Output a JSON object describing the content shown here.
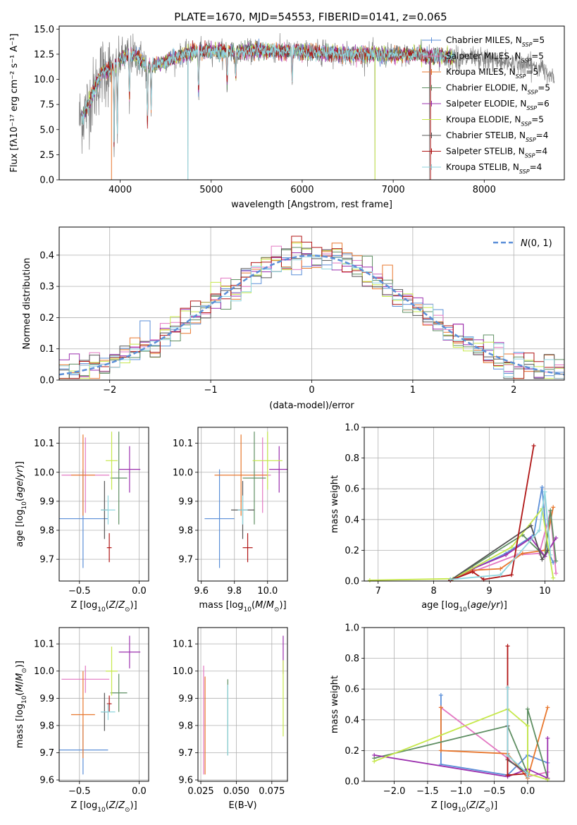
{
  "figure": {
    "title": "PLATE=1670, MJD=54553, FIBERID=0141, z=0.065"
  },
  "colors": {
    "chabrier_miles": "#5b8fd8",
    "salpeter_miles": "#e377c2",
    "kroupa_miles": "#e8772e",
    "chabrier_elodie": "#5f8f63",
    "salpeter_elodie": "#9b2fae",
    "kroupa_elodie": "#c6e84a",
    "chabrier_stelib": "#555555",
    "salpeter_stelib": "#b01515",
    "kroupa_stelib": "#8fd6df",
    "data_gray": "#808080",
    "gaussian": "#5b8fd8"
  },
  "chart_data": [
    {
      "id": "spectrum",
      "type": "line",
      "title": "PLATE=1670, MJD=54553, FIBERID=0141, z=0.065",
      "xlabel": "wavelength [Angstrom, rest frame]",
      "ylabel": "Flux [fλ10⁻¹⁷ erg cm⁻² s⁻¹ A⁻¹]",
      "xlim": [
        3330,
        8880
      ],
      "ylim": [
        0,
        15.3
      ],
      "xticks": [
        4000,
        5000,
        6000,
        7000,
        8000
      ],
      "yticks": [
        0.0,
        2.5,
        5.0,
        7.5,
        10.0,
        12.5,
        15.0
      ],
      "grid": false,
      "legend_position": "top-right",
      "legend": [
        {
          "label": "Chabrier MILES, N",
          "sub": "SSP",
          "suffix": "=5",
          "color_key": "chabrier_miles"
        },
        {
          "label": "Salpeter MILES, N",
          "sub": "SSP",
          "suffix": "=5",
          "color_key": "salpeter_miles"
        },
        {
          "label": "Kroupa MILES, N",
          "sub": "SSP",
          "suffix": "=5",
          "color_key": "kroupa_miles"
        },
        {
          "label": "Chabrier ELODIE, N",
          "sub": "SSP",
          "suffix": "=5",
          "color_key": "chabrier_elodie"
        },
        {
          "label": "Salpeter ELODIE, N",
          "sub": "SSP",
          "suffix": "=6",
          "color_key": "salpeter_elodie"
        },
        {
          "label": "Kroupa ELODIE, N",
          "sub": "SSP",
          "suffix": "=5",
          "color_key": "kroupa_elodie"
        },
        {
          "label": "Chabrier STELIB, N",
          "sub": "SSP",
          "suffix": "=4",
          "color_key": "chabrier_stelib"
        },
        {
          "label": "Salpeter STELIB, N",
          "sub": "SSP",
          "suffix": "=4",
          "color_key": "salpeter_stelib"
        },
        {
          "label": "Kroupa STELIB, N",
          "sub": "SSP",
          "suffix": "=4",
          "color_key": "kroupa_stelib"
        }
      ],
      "continuum": {
        "x": [
          3550,
          3600,
          3700,
          3800,
          3900,
          4000,
          4100,
          4200,
          4300,
          4500,
          4700,
          4900,
          5100,
          5300,
          5500,
          5700,
          5900,
          6100,
          6300,
          6500,
          6700,
          6900,
          7100,
          7300,
          7400,
          7500,
          7600,
          7800,
          8000,
          8200,
          8400,
          8600,
          8800
        ],
        "y": [
          6.0,
          6.5,
          8.5,
          10.8,
          11.0,
          12.0,
          12.5,
          12.2,
          11.2,
          11.8,
          12.5,
          12.8,
          12.8,
          12.7,
          12.9,
          12.8,
          12.8,
          12.7,
          12.6,
          12.5,
          12.5,
          12.4,
          12.4,
          12.5,
          12.3,
          12.4,
          12.2,
          12.0,
          12.0,
          11.8,
          11.5,
          11.2,
          10.2
        ]
      },
      "model_extent": [
        3580,
        7680
      ],
      "data_extent": [
        3550,
        8770
      ],
      "absorption_features": [
        {
          "x": 3934,
          "y": 2.0
        },
        {
          "x": 3969,
          "y": 4.0
        },
        {
          "x": 4102,
          "y": 7.0
        },
        {
          "x": 4300,
          "y": 4.8
        },
        {
          "x": 4340,
          "y": 6.5
        },
        {
          "x": 4861,
          "y": 8.0
        },
        {
          "x": 5175,
          "y": 9.0
        },
        {
          "x": 5270,
          "y": 10.0
        },
        {
          "x": 5890,
          "y": 9.5
        }
      ],
      "data_dropouts": [
        {
          "x": 4745,
          "y": 0.0
        },
        {
          "x": 6800,
          "y": 0.0
        },
        {
          "x": 7400,
          "y": 0.0
        }
      ]
    },
    {
      "id": "residuals",
      "type": "histogram",
      "xlabel": "(data-model)/error",
      "ylabel": "Normed distribution",
      "xlim": [
        -2.5,
        2.5
      ],
      "ylim": [
        0,
        0.49
      ],
      "xticks": [
        -2,
        -1,
        0,
        1,
        2
      ],
      "yticks": [
        0.0,
        0.1,
        0.2,
        0.3,
        0.4
      ],
      "grid": true,
      "bin_width": 0.1,
      "bin_start": -2.5,
      "legend_position": "top-right",
      "gaussian": {
        "label": "N(0,1)",
        "mean": 0,
        "sigma": 1,
        "style": "dashed"
      }
    },
    {
      "id": "age_vs_Z",
      "type": "scatter",
      "xlabel": "Z [log10(Z/Z⊙)]",
      "ylabel": "age [log10(age/yr)]",
      "xlim": [
        -0.67,
        0.08
      ],
      "ylim": [
        9.625,
        10.155
      ],
      "xticks": [
        -0.5,
        0.0
      ],
      "xtick_labels": [
        "−0.5",
        "0.0"
      ],
      "yticks": [
        9.7,
        9.8,
        9.9,
        10.0,
        10.1
      ],
      "grid": true,
      "points": [
        {
          "series": "chabrier_miles",
          "x": -0.47,
          "y": 9.84,
          "xerr": 0.21,
          "yerr": 0.17
        },
        {
          "series": "salpeter_miles",
          "x": -0.45,
          "y": 9.99,
          "xerr": 0.2,
          "yerr": 0.13
        },
        {
          "series": "kroupa_miles",
          "x": -0.47,
          "y": 9.99,
          "xerr": 0.1,
          "yerr": 0.14
        },
        {
          "series": "chabrier_elodie",
          "x": -0.17,
          "y": 9.98,
          "xerr": 0.07,
          "yerr": 0.16
        },
        {
          "series": "salpeter_elodie",
          "x": -0.08,
          "y": 10.01,
          "xerr": 0.09,
          "yerr": 0.08
        },
        {
          "series": "kroupa_elodie",
          "x": -0.23,
          "y": 10.04,
          "xerr": 0.05,
          "yerr": 0.1
        },
        {
          "series": "chabrier_stelib",
          "x": -0.29,
          "y": 9.87,
          "xerr": 0.03,
          "yerr": 0.1
        },
        {
          "series": "salpeter_stelib",
          "x": -0.25,
          "y": 9.74,
          "xerr": 0.02,
          "yerr": 0.05
        },
        {
          "series": "kroupa_stelib",
          "x": -0.26,
          "y": 9.87,
          "xerr": 0.06,
          "yerr": 0.05
        }
      ]
    },
    {
      "id": "age_vs_mass",
      "type": "scatter",
      "xlabel": "mass [log10(M/M⊙)]",
      "xlim": [
        9.58,
        10.12
      ],
      "ylim": [
        9.625,
        10.155
      ],
      "xticks": [
        9.6,
        9.8,
        10.0
      ],
      "yticks": [
        9.7,
        9.8,
        9.9,
        10.0,
        10.1
      ],
      "grid": true,
      "points": [
        {
          "series": "chabrier_miles",
          "x": 9.71,
          "y": 9.84,
          "xerr": 0.09,
          "yerr": 0.17
        },
        {
          "series": "salpeter_miles",
          "x": 9.97,
          "y": 9.99,
          "xerr": 0.05,
          "yerr": 0.13
        },
        {
          "series": "kroupa_miles",
          "x": 9.84,
          "y": 9.99,
          "xerr": 0.16,
          "yerr": 0.14
        },
        {
          "series": "chabrier_elodie",
          "x": 9.92,
          "y": 9.98,
          "xerr": 0.07,
          "yerr": 0.16
        },
        {
          "series": "salpeter_elodie",
          "x": 10.07,
          "y": 10.01,
          "xerr": 0.06,
          "yerr": 0.08
        },
        {
          "series": "kroupa_elodie",
          "x": 10.0,
          "y": 10.04,
          "xerr": 0.09,
          "yerr": 0.1
        },
        {
          "series": "chabrier_stelib",
          "x": 9.85,
          "y": 9.87,
          "xerr": 0.07,
          "yerr": 0.1
        },
        {
          "series": "salpeter_stelib",
          "x": 9.88,
          "y": 9.74,
          "xerr": 0.03,
          "yerr": 0.05
        },
        {
          "series": "kroupa_stelib",
          "x": 9.85,
          "y": 9.87,
          "xerr": 0.03,
          "yerr": 0.05
        }
      ]
    },
    {
      "id": "mass_vs_Z",
      "type": "scatter",
      "xlabel": "Z [log10(Z/Z⊙)]",
      "ylabel": "mass [log10(M/M⊙)]",
      "xlim": [
        -0.67,
        0.08
      ],
      "ylim": [
        9.595,
        10.16
      ],
      "xticks": [
        -0.5,
        0.0
      ],
      "xtick_labels": [
        "−0.5",
        "0.0"
      ],
      "yticks": [
        9.6,
        9.7,
        9.8,
        9.9,
        10.0,
        10.1
      ],
      "grid": true,
      "points": [
        {
          "series": "chabrier_miles",
          "x": -0.47,
          "y": 9.71,
          "xerr": 0.21,
          "yerr": 0.09
        },
        {
          "series": "salpeter_miles",
          "x": -0.45,
          "y": 9.97,
          "xerr": 0.2,
          "yerr": 0.05
        },
        {
          "series": "kroupa_miles",
          "x": -0.47,
          "y": 9.84,
          "xerr": 0.1,
          "yerr": 0.16
        },
        {
          "series": "chabrier_elodie",
          "x": -0.17,
          "y": 9.92,
          "xerr": 0.07,
          "yerr": 0.07
        },
        {
          "series": "salpeter_elodie",
          "x": -0.08,
          "y": 10.07,
          "xerr": 0.09,
          "yerr": 0.06
        },
        {
          "series": "kroupa_elodie",
          "x": -0.23,
          "y": 10.0,
          "xerr": 0.05,
          "yerr": 0.09
        },
        {
          "series": "chabrier_stelib",
          "x": -0.29,
          "y": 9.85,
          "xerr": 0.03,
          "yerr": 0.07
        },
        {
          "series": "salpeter_stelib",
          "x": -0.25,
          "y": 9.88,
          "xerr": 0.02,
          "yerr": 0.03
        },
        {
          "series": "kroupa_stelib",
          "x": -0.26,
          "y": 9.85,
          "xerr": 0.06,
          "yerr": 0.03
        }
      ]
    },
    {
      "id": "mass_vs_ebv",
      "type": "scatter",
      "xlabel": "E(B-V)",
      "xlim": [
        0.023,
        0.086
      ],
      "ylim": [
        9.595,
        10.16
      ],
      "xticks": [
        0.025,
        0.05,
        0.075
      ],
      "xtick_labels": [
        "0.025",
        "0.050",
        "0.075"
      ],
      "yticks": [
        9.6,
        9.7,
        9.8,
        9.9,
        10.0,
        10.1
      ],
      "grid": true,
      "points": [
        {
          "series": "salpeter_miles",
          "x": 0.027,
          "y": 9.82,
          "yerr": 0.2
        },
        {
          "series": "kroupa_miles",
          "x": 0.028,
          "y": 9.8,
          "yerr": 0.18
        },
        {
          "series": "chabrier_elodie",
          "x": 0.044,
          "y": 9.83,
          "yerr": 0.14
        },
        {
          "series": "kroupa_stelib",
          "x": 0.044,
          "y": 9.82,
          "yerr": 0.13
        },
        {
          "series": "salpeter_elodie",
          "x": 0.083,
          "y": 10.06,
          "yerr": 0.07
        },
        {
          "series": "kroupa_elodie",
          "x": 0.083,
          "y": 9.9,
          "yerr": 0.14
        }
      ]
    },
    {
      "id": "weight_vs_age",
      "type": "line",
      "xlabel": "age [log10(age/yr)]",
      "ylabel": "mass weight",
      "xlim": [
        6.75,
        10.35
      ],
      "ylim": [
        0,
        1.0
      ],
      "xticks": [
        7,
        8,
        9,
        10
      ],
      "yticks": [
        0.0,
        0.2,
        0.4,
        0.6,
        0.8,
        1.0
      ],
      "grid": true,
      "series": [
        {
          "color_key": "chabrier_miles",
          "x": [
            8.3,
            9.3,
            9.8,
            9.95,
            10.05,
            10.15
          ],
          "y": [
            0.01,
            0.18,
            0.3,
            0.61,
            0.2,
            0.12
          ]
        },
        {
          "color_key": "salpeter_miles",
          "x": [
            8.3,
            9.5,
            9.9,
            10.1,
            10.2
          ],
          "y": [
            0.005,
            0.17,
            0.18,
            0.45,
            0.05
          ]
        },
        {
          "color_key": "kroupa_miles",
          "x": [
            8.3,
            8.7,
            9.2,
            9.6,
            10.0,
            10.15
          ],
          "y": [
            0.005,
            0.07,
            0.08,
            0.18,
            0.2,
            0.48
          ]
        },
        {
          "color_key": "chabrier_elodie",
          "x": [
            8.3,
            9.6,
            10.0,
            10.1,
            10.2
          ],
          "y": [
            0.005,
            0.3,
            0.16,
            0.46,
            0.13
          ]
        },
        {
          "color_key": "salpeter_elodie",
          "x": [
            8.3,
            8.7,
            9.3,
            9.75,
            10.0,
            10.2
          ],
          "y": [
            0.005,
            0.08,
            0.17,
            0.28,
            0.16,
            0.28
          ]
        },
        {
          "color_key": "kroupa_elodie",
          "x": [
            6.85,
            8.35,
            9.4,
            9.95,
            10.15
          ],
          "y": [
            0.005,
            0.015,
            0.22,
            0.47,
            0.02
          ]
        },
        {
          "color_key": "chabrier_stelib",
          "x": [
            8.3,
            9.75,
            9.95,
            10.05
          ],
          "y": [
            0.005,
            0.36,
            0.14,
            0.2
          ]
        },
        {
          "color_key": "salpeter_stelib",
          "x": [
            8.3,
            8.7,
            8.9,
            9.4,
            9.8
          ],
          "y": [
            0.005,
            0.06,
            0.01,
            0.04,
            0.88
          ]
        },
        {
          "color_key": "kroupa_stelib",
          "x": [
            8.3,
            9.2,
            9.9,
            10.0,
            10.1
          ],
          "y": [
            0.01,
            0.04,
            0.33,
            0.58,
            0.17
          ]
        }
      ]
    },
    {
      "id": "weight_vs_Z",
      "type": "line",
      "xlabel": "Z [log10(Z/Z⊙)]",
      "ylabel": "mass weight",
      "xlim": [
        -2.45,
        0.55
      ],
      "ylim": [
        0,
        1.0
      ],
      "xticks": [
        -2.0,
        -1.5,
        -1.0,
        -0.5,
        0.0
      ],
      "xtick_labels": [
        "−2.0",
        "−1.5",
        "−1.0",
        "−0.5",
        "0.0"
      ],
      "yticks": [
        0.0,
        0.2,
        0.4,
        0.6,
        0.8,
        1.0
      ],
      "grid": true,
      "series": [
        {
          "color_key": "chabrier_miles",
          "x": [
            -1.3,
            -1.3,
            -0.3,
            0.0,
            0.3
          ],
          "y": [
            0.56,
            0.11,
            0.04,
            0.17,
            0.12
          ]
        },
        {
          "color_key": "salpeter_miles",
          "x": [
            -1.3,
            -0.3,
            0.0,
            0.3
          ],
          "y": [
            0.48,
            0.15,
            0.03,
            0.06
          ]
        },
        {
          "color_key": "kroupa_miles",
          "x": [
            -1.3,
            -1.3,
            -0.3,
            0.0,
            0.3
          ],
          "y": [
            0.48,
            0.2,
            0.18,
            0.02,
            0.48
          ]
        },
        {
          "color_key": "chabrier_elodie",
          "x": [
            -2.3,
            -0.3,
            0.0,
            0.0,
            0.3
          ],
          "y": [
            0.15,
            0.36,
            0.05,
            0.47,
            0.02
          ]
        },
        {
          "color_key": "salpeter_elodie",
          "x": [
            -2.3,
            -0.3,
            0.0,
            0.3,
            0.3
          ],
          "y": [
            0.17,
            0.03,
            0.08,
            0.02,
            0.28
          ]
        },
        {
          "color_key": "kroupa_elodie",
          "x": [
            -2.3,
            -0.3,
            0.0,
            0.0,
            0.3
          ],
          "y": [
            0.13,
            0.47,
            0.36,
            0.05,
            0.01
          ]
        },
        {
          "color_key": "chabrier_stelib",
          "x": [
            -0.3,
            -0.3,
            0.0
          ],
          "y": [
            0.36,
            0.14,
            0.05
          ]
        },
        {
          "color_key": "salpeter_stelib",
          "x": [
            -0.3,
            -0.3,
            0.0
          ],
          "y": [
            0.88,
            0.04,
            0.05
          ]
        },
        {
          "color_key": "kroupa_stelib",
          "x": [
            -0.3,
            -0.3,
            0.0,
            0.0
          ],
          "y": [
            0.61,
            0.17,
            0.05,
            0.03
          ]
        }
      ]
    }
  ]
}
